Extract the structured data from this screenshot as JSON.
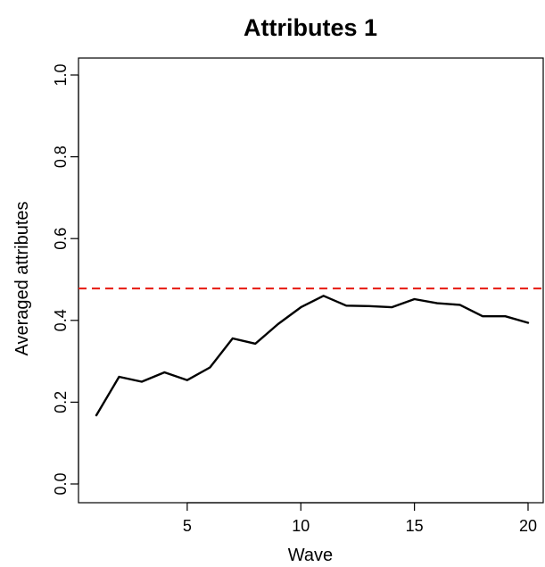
{
  "chart_data": {
    "type": "line",
    "title": "Attributes 1",
    "xlabel": "Wave",
    "ylabel": "Averaged attributes",
    "xlim": [
      1,
      20
    ],
    "ylim": [
      0,
      1
    ],
    "x_ticks": [
      5,
      10,
      15,
      20
    ],
    "y_ticks": [
      0.0,
      0.2,
      0.4,
      0.6,
      0.8,
      1.0
    ],
    "y_tick_labels": [
      "0.0",
      "0.2",
      "0.4",
      "0.6",
      "0.8",
      "1.0"
    ],
    "grid": false,
    "series": [
      {
        "x": [
          1,
          2,
          3,
          4,
          5,
          6,
          7,
          8,
          9,
          10,
          11,
          12,
          13,
          14,
          15,
          16,
          17,
          18,
          19,
          20
        ],
        "values": [
          0.168,
          0.262,
          0.25,
          0.273,
          0.254,
          0.285,
          0.356,
          0.343,
          0.391,
          0.432,
          0.46,
          0.436,
          0.435,
          0.432,
          0.452,
          0.442,
          0.438,
          0.41,
          0.41,
          0.394
        ],
        "color": "#000000",
        "style": "solid"
      }
    ],
    "reference_lines": [
      {
        "y": 0.478,
        "color": "#e8241c",
        "style": "dashed"
      }
    ]
  }
}
